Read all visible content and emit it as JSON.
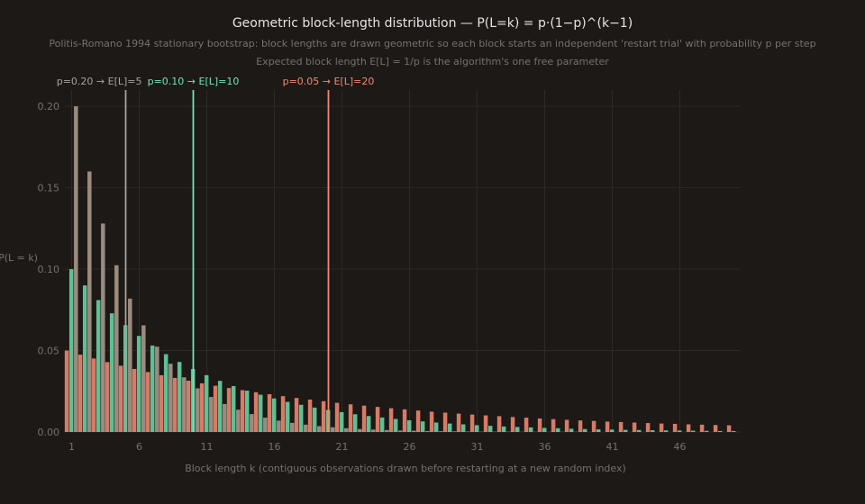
{
  "chart_data": {
    "type": "bar",
    "title": "Geometric block-length distribution — P(L=k) = p·(1−p)^(k−1)",
    "subtitle": "Politis-Romano 1994 stationary bootstrap: block lengths are drawn geometric so each block starts an independent 'restart trial' with probability p per step",
    "subtitle2": "Expected block length E[L] = 1/p is the algorithm's one free parameter",
    "xlabel": "Block length k (contiguous observations drawn before restarting at a new random index)",
    "ylabel": "P(L = k)",
    "x": [
      1,
      2,
      3,
      4,
      5,
      6,
      7,
      8,
      9,
      10,
      11,
      12,
      13,
      14,
      15,
      16,
      17,
      18,
      19,
      20,
      21,
      22,
      23,
      24,
      25,
      26,
      27,
      28,
      29,
      30,
      31,
      32,
      33,
      34,
      35,
      36,
      37,
      38,
      39,
      40,
      41,
      42,
      43,
      44,
      45,
      46,
      47,
      48,
      49,
      50
    ],
    "x_ticks": [
      1,
      6,
      11,
      16,
      21,
      26,
      31,
      36,
      41,
      46
    ],
    "y_ticks": [
      0,
      0.05,
      0.1,
      0.15,
      0.2
    ],
    "y_tick_labels": [
      "0.00",
      "0.05",
      "0.10",
      "0.15",
      "0.20"
    ],
    "ylim": [
      0,
      0.21
    ],
    "xlim": [
      0.5,
      50.5
    ],
    "grid": true,
    "series": [
      {
        "p": 0.05,
        "color": "#d97a65",
        "values": [
          0.05,
          0.0475,
          0.0451,
          0.0429,
          0.0407,
          0.0387,
          0.0368,
          0.0349,
          0.0332,
          0.0315,
          0.0299,
          0.0284,
          0.027,
          0.0257,
          0.0244,
          0.0232,
          0.022,
          0.0209,
          0.0199,
          0.0189,
          0.0179,
          0.017,
          0.0162,
          0.0154,
          0.0146,
          0.0139,
          0.0132,
          0.0125,
          0.0119,
          0.0113,
          0.0107,
          0.0102,
          0.0097,
          0.0092,
          0.0088,
          0.0083,
          0.0079,
          0.0075,
          0.0071,
          0.0068,
          0.0064,
          0.0061,
          0.0058,
          0.0055,
          0.0052,
          0.005,
          0.0047,
          0.0045,
          0.0043,
          0.0041
        ]
      },
      {
        "p": 0.1,
        "color": "#5fbf95",
        "values": [
          0.1,
          0.09,
          0.081,
          0.0729,
          0.0656,
          0.059,
          0.0531,
          0.0478,
          0.043,
          0.0387,
          0.0349,
          0.0314,
          0.0282,
          0.0254,
          0.0229,
          0.0206,
          0.0185,
          0.0167,
          0.015,
          0.0135,
          0.0122,
          0.0109,
          0.0098,
          0.0089,
          0.008,
          0.0072,
          0.0065,
          0.0058,
          0.0052,
          0.0047,
          0.0042,
          0.0038,
          0.0034,
          0.0031,
          0.0028,
          0.0025,
          0.0023,
          0.002,
          0.0018,
          0.0016,
          0.0015,
          0.0013,
          0.0012,
          0.0011,
          0.001,
          0.0009,
          0.0008,
          0.0007,
          0.0006,
          0.0006
        ]
      },
      {
        "p": 0.2,
        "color": "#9b8b7f",
        "values": [
          0.2,
          0.16,
          0.128,
          0.1024,
          0.0819,
          0.0655,
          0.0524,
          0.0419,
          0.0336,
          0.0268,
          0.0215,
          0.0172,
          0.0137,
          0.011,
          0.0088,
          0.007,
          0.0056,
          0.0045,
          0.0036,
          0.0029,
          0.0023,
          0.0018,
          0.0015,
          0.0012,
          0.0009,
          0.0008,
          0.0006,
          0.0005,
          0.0004,
          0.0003,
          0.0002,
          0.0002,
          0.0002,
          0.0001,
          0.0001,
          0.0001,
          0.0001,
          0.0001,
          0,
          0,
          0,
          0,
          0,
          0,
          0,
          0,
          0,
          0,
          0,
          0
        ]
      }
    ],
    "annotations": [
      {
        "x": 5,
        "label": "p=0.20 → E[L]=5",
        "color": "#a8a29e",
        "anchor": "end"
      },
      {
        "x": 10,
        "label": "p=0.10 → E[L]=10",
        "color": "#6ee7b7",
        "anchor": "middle"
      },
      {
        "x": 20,
        "label": "p=0.05 → E[L]=20",
        "color": "#f08a76",
        "anchor": "middle"
      }
    ]
  }
}
